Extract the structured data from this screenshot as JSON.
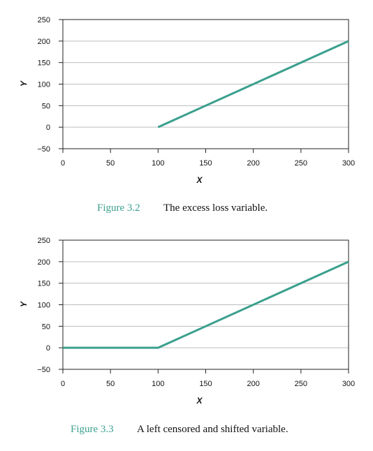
{
  "chart_data": [
    {
      "type": "line",
      "xlabel": "X",
      "ylabel": "Y",
      "xlim": [
        0,
        300
      ],
      "ylim": [
        -50,
        250
      ],
      "xticks": [
        0,
        50,
        100,
        150,
        200,
        250,
        300
      ],
      "yticks": [
        -50,
        0,
        50,
        100,
        150,
        200,
        250
      ],
      "grid": "horizontal",
      "series": [
        {
          "x": [
            100,
            300
          ],
          "y": [
            0,
            200
          ]
        }
      ],
      "caption_number": "Figure 3.2",
      "caption_text": "The excess loss variable."
    },
    {
      "type": "line",
      "xlabel": "X",
      "ylabel": "Y",
      "xlim": [
        0,
        300
      ],
      "ylim": [
        -50,
        250
      ],
      "xticks": [
        0,
        50,
        100,
        150,
        200,
        250,
        300
      ],
      "yticks": [
        -50,
        0,
        50,
        100,
        150,
        200,
        250
      ],
      "grid": "horizontal",
      "series": [
        {
          "x": [
            0,
            100,
            300
          ],
          "y": [
            0,
            0,
            200
          ]
        }
      ],
      "caption_number": "Figure 3.3",
      "caption_text": "A left censored and shifted variable."
    }
  ],
  "colors": {
    "line": "#3aa08e",
    "caption_number": "#3aa08e",
    "grid": "#bdbdbd",
    "axis": "#222222"
  }
}
